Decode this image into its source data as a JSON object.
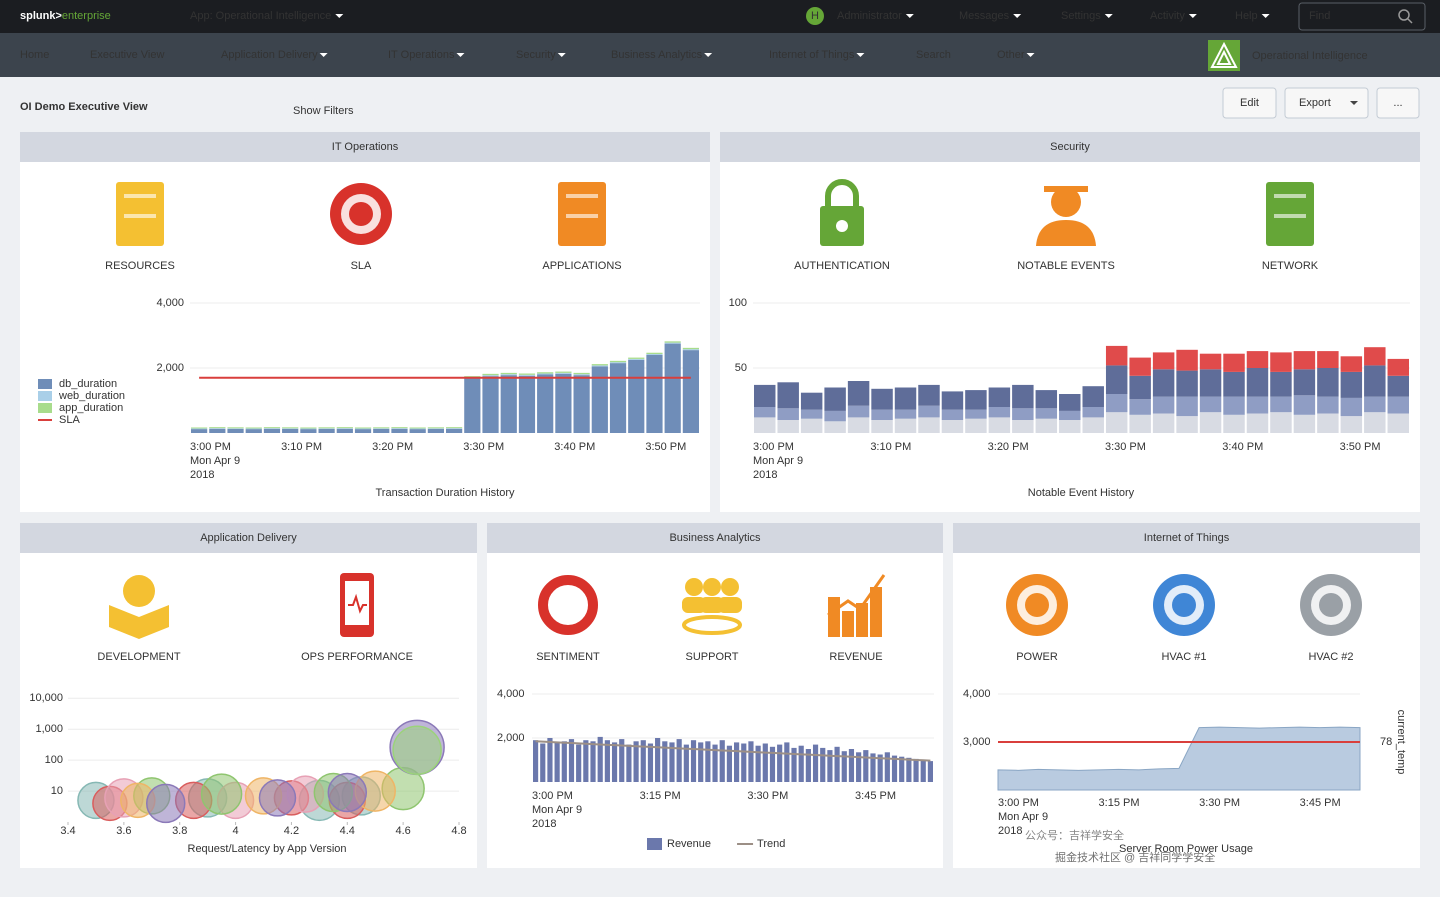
{
  "topbar": {
    "logo": "splunk>",
    "product": "enterprise",
    "app": "App: Operational Intelligence",
    "user_initial": "H",
    "menus": [
      "Administrator",
      "Messages",
      "Settings",
      "Activity",
      "Help"
    ],
    "search": "Find"
  },
  "nav": {
    "items": [
      "Home",
      "Executive View",
      "Application Delivery",
      "IT Operations",
      "Security",
      "Business Analytics",
      "Internet of Things",
      "Search",
      "Other"
    ],
    "app_title": "Operational Intelligence"
  },
  "header": {
    "title": "OI Demo Executive View",
    "show_filters": "Show Filters",
    "buttons": [
      "Edit",
      "Export",
      "..."
    ]
  },
  "watermark": [
    "公众号：吉祥学安全",
    "掘金技术社区 @ 吉祥同学学安全"
  ],
  "panels": [
    {
      "title": "IT Operations",
      "icons": [
        "RESOURCES",
        "SLA",
        "APPLICATIONS"
      ],
      "chart_data": {
        "type": "stacked_bar",
        "title": "Transaction Duration History",
        "categories": [
          "3:00 PM",
          null,
          null,
          null,
          null,
          "3:10 PM",
          null,
          null,
          null,
          null,
          "3:20 PM",
          null,
          null,
          null,
          null,
          "3:30 PM",
          null,
          null,
          null,
          null,
          "3:40 PM",
          null,
          null,
          null,
          null,
          "3:50 PM",
          null,
          null
        ],
        "x_date": [
          "Mon Apr 9",
          "2018"
        ],
        "ylim": [
          0,
          4000
        ],
        "yticks": [
          {
            "value": 2000,
            "label": "2,000"
          },
          {
            "value": 4000,
            "label": "4,000"
          }
        ],
        "legend": "left",
        "series": [
          {
            "name": "db_duration",
            "color": "#6f8db8",
            "values": [
              120,
              130,
              125,
              120,
              130,
              125,
              120,
              125,
              130,
              120,
              125,
              130,
              120,
              125,
              130,
              1680,
              1750,
              1780,
              1760,
              1800,
              1820,
              1780,
              2050,
              2150,
              2250,
              2400,
              2750,
              2550
            ]
          },
          {
            "name": "web_duration",
            "color": "#a9cfe8",
            "values": [
              20,
              20,
              20,
              20,
              20,
              20,
              20,
              20,
              20,
              20,
              20,
              20,
              20,
              20,
              20,
              30,
              30,
              30,
              30,
              30,
              30,
              30,
              30,
              30,
              30,
              30,
              30,
              30
            ]
          },
          {
            "name": "app_duration",
            "color": "#a8dc8c",
            "values": [
              30,
              30,
              30,
              30,
              30,
              30,
              30,
              30,
              30,
              30,
              30,
              30,
              30,
              30,
              30,
              40,
              40,
              40,
              40,
              40,
              40,
              40,
              40,
              40,
              40,
              40,
              40,
              40
            ]
          },
          {
            "name": "SLA",
            "color": "#d93f3c",
            "type": "line",
            "values": [
              1700,
              1700,
              1700,
              1700,
              1700,
              1700,
              1700,
              1700,
              1700,
              1700,
              1700,
              1700,
              1700,
              1700,
              1700,
              1700,
              1700,
              1700,
              1700,
              1700,
              1700,
              1700,
              1700,
              1700,
              1700,
              1700,
              1700,
              1700
            ]
          }
        ]
      }
    },
    {
      "title": "Security",
      "icons": [
        "AUTHENTICATION",
        "NOTABLE EVENTS",
        "NETWORK"
      ],
      "chart_data": {
        "type": "stacked_bar",
        "title": "Notable Event History",
        "categories": [
          "3:00 PM",
          null,
          null,
          null,
          null,
          "3:10 PM",
          null,
          null,
          null,
          null,
          "3:20 PM",
          null,
          null,
          null,
          null,
          "3:30 PM",
          null,
          null,
          null,
          null,
          "3:40 PM",
          null,
          null,
          null,
          null,
          "3:50 PM",
          null,
          null
        ],
        "x_date": [
          "Mon Apr 9",
          "2018"
        ],
        "ylim": [
          0,
          100
        ],
        "yticks": [
          50,
          100
        ],
        "series": [
          {
            "color": "#d8dbe3",
            "values": [
              12,
              10,
              11,
              9,
              12,
              10,
              11,
              12,
              10,
              11,
              12,
              10,
              11,
              10,
              12,
              16,
              14,
              15,
              13,
              16,
              14,
              15,
              16,
              14,
              15,
              13,
              16,
              15
            ]
          },
          {
            "color": "#8f9dc4",
            "values": [
              8,
              9,
              7,
              8,
              9,
              8,
              7,
              9,
              8,
              7,
              8,
              9,
              8,
              7,
              8,
              14,
              12,
              13,
              15,
              12,
              14,
              13,
              12,
              15,
              13,
              14,
              12,
              13
            ]
          },
          {
            "color": "#5f6d99",
            "values": [
              17,
              20,
              13,
              18,
              19,
              16,
              17,
              16,
              14,
              15,
              15,
              18,
              14,
              13,
              16,
              22,
              18,
              21,
              20,
              21,
              19,
              22,
              19,
              20,
              22,
              20,
              24,
              16
            ]
          },
          {
            "color": "#e04b4b",
            "values": [
              0,
              0,
              0,
              0,
              0,
              0,
              0,
              0,
              0,
              0,
              0,
              0,
              0,
              0,
              0,
              15,
              14,
              13,
              16,
              12,
              14,
              13,
              15,
              14,
              13,
              12,
              14,
              13
            ]
          }
        ]
      }
    },
    {
      "title": "Application Delivery",
      "icons": [
        "DEVELOPMENT",
        "OPS PERFORMANCE"
      ],
      "chart_data": {
        "type": "bubble",
        "title": "Request/Latency by App Version",
        "log_y": true,
        "xlim": [
          3.4,
          4.8
        ],
        "xticks": [
          3.4,
          3.6,
          3.8,
          4,
          4.2,
          4.4,
          4.6,
          4.8
        ],
        "ylim": [
          1,
          20000
        ],
        "yticks": [
          10,
          100,
          {
            "value": 1000,
            "label": "1,000"
          },
          {
            "value": 10000,
            "label": "10,000"
          }
        ],
        "series": [
          {
            "color": "#86b8b4",
            "x": [
              3.5,
              3.9,
              4.3,
              4.45
            ],
            "values": [
              5,
              6,
              5,
              7
            ],
            "sizes": [
              324,
              361,
              400,
              361
            ]
          },
          {
            "color": "#d95d5d",
            "x": [
              3.55,
              3.85,
              4.2,
              4.4
            ],
            "values": [
              4,
              5,
              6,
              5
            ],
            "sizes": [
              289,
              324,
              289,
              324
            ]
          },
          {
            "color": "#e7a1b5",
            "x": [
              3.6,
              4.0,
              4.25
            ],
            "values": [
              6,
              5,
              8
            ],
            "sizes": [
              361,
              324,
              324
            ]
          },
          {
            "color": "#8fc56f",
            "x": [
              3.7,
              3.95,
              4.35,
              4.6
            ],
            "values": [
              7,
              8,
              9,
              12
            ],
            "sizes": [
              324,
              400,
              361,
              441
            ]
          },
          {
            "color": "#efb566",
            "x": [
              3.65,
              4.1,
              4.5
            ],
            "values": [
              5,
              7,
              10
            ],
            "sizes": [
              289,
              324,
              400
            ]
          },
          {
            "color": "#8b79b8",
            "x": [
              3.75,
              4.15,
              4.4,
              4.65
            ],
            "values": [
              4,
              6,
              9,
              260
            ],
            "sizes": [
              361,
              324,
              361,
              729
            ]
          },
          {
            "color": "#9bd37a",
            "x": [
              4.65
            ],
            "values": [
              210
            ],
            "sizes": [
              576
            ]
          }
        ]
      }
    },
    {
      "title": "Business Analytics",
      "icons": [
        "SENTIMENT",
        "SUPPORT",
        "REVENUE"
      ],
      "chart_data": {
        "type": "bar_line",
        "legend": "bottom",
        "categories": [
          "3:00 PM",
          null,
          null,
          null,
          null,
          null,
          null,
          null,
          null,
          null,
          null,
          null,
          null,
          null,
          null,
          "3:15 PM",
          null,
          null,
          null,
          null,
          null,
          null,
          null,
          null,
          null,
          null,
          null,
          null,
          null,
          null,
          "3:30 PM",
          null,
          null,
          null,
          null,
          null,
          null,
          null,
          null,
          null,
          null,
          null,
          null,
          null,
          null,
          "3:45 PM",
          null,
          null,
          null,
          null,
          null,
          null,
          null,
          null,
          null,
          null
        ],
        "x_date": [
          "Mon Apr 9",
          "2018"
        ],
        "ylim": [
          0,
          4000
        ],
        "yticks": [
          {
            "value": 2000,
            "label": "2,000"
          },
          {
            "value": 4000,
            "label": "4,000"
          }
        ],
        "series": [
          {
            "name": "Revenue",
            "color": "#6b78ac",
            "values": [
              1900,
              1750,
              2000,
              1800,
              1850,
              1950,
              1700,
              1900,
              1850,
              2050,
              1900,
              1800,
              1950,
              1700,
              1850,
              1900,
              1750,
              2000,
              1850,
              1800,
              1950,
              1700,
              1900,
              1800,
              1850,
              1700,
              1900,
              1650,
              1800,
              1750,
              1850,
              1650,
              1750,
              1600,
              1700,
              1800,
              1550,
              1650,
              1500,
              1700,
              1550,
              1450,
              1600,
              1400,
              1500,
              1350,
              1450,
              1300,
              1250,
              1350,
              1200,
              1150,
              1100,
              1050,
              1000,
              950
            ]
          },
          {
            "name": "Trend",
            "color": "#9c8f86",
            "type": "line",
            "values": [
              1850,
              1834,
              1818,
              1802,
              1786,
              1770,
              1754,
              1738,
              1722,
              1706,
              1690,
              1674,
              1658,
              1642,
              1626,
              1610,
              1594,
              1578,
              1562,
              1546,
              1530,
              1514,
              1498,
              1482,
              1466,
              1450,
              1434,
              1418,
              1402,
              1386,
              1370,
              1354,
              1338,
              1322,
              1306,
              1290,
              1274,
              1258,
              1242,
              1226,
              1210,
              1194,
              1178,
              1162,
              1146,
              1130,
              1114,
              1098,
              1082,
              1066,
              1050,
              1034,
              1018,
              1002,
              986,
              970
            ]
          }
        ]
      }
    },
    {
      "title": "Internet of Things",
      "icons": [
        "POWER",
        "HVAC #1",
        "HVAC #2"
      ],
      "chart_data": {
        "type": "area_line",
        "title": "Server Room Power Usage",
        "categories": [
          "3:00 PM",
          null,
          null,
          null,
          null,
          "3:15 PM",
          null,
          null,
          null,
          null,
          "3:30 PM",
          null,
          null,
          null,
          null,
          "3:45 PM",
          null,
          null,
          null
        ],
        "x_date": [
          "Mon Apr 9",
          "2018"
        ],
        "ylim": [
          2000,
          4000
        ],
        "yticks": [
          {
            "value": 3000,
            "label": "3,000"
          },
          {
            "value": 4000,
            "label": "4,000"
          }
        ],
        "y2lim": [
          74,
          82
        ],
        "y2ticks": [
          78
        ],
        "y2label": "current_temp",
        "series": [
          {
            "color": "#b9cbe0",
            "type": "area",
            "values": [
              2420,
              2410,
              2430,
              2420,
              2410,
              2420,
              2430,
              2420,
              2440,
              2450,
              3300,
              3310,
              3300,
              3290,
              3300,
              3310,
              3300,
              3310,
              3300
            ]
          },
          {
            "color": "#d93f3c",
            "type": "line",
            "axis": "y2",
            "values": [
              78,
              78,
              78,
              78,
              78,
              78,
              78,
              78,
              78,
              78,
              78,
              78,
              78,
              78,
              78,
              78,
              78,
              78,
              78
            ]
          }
        ]
      }
    }
  ]
}
